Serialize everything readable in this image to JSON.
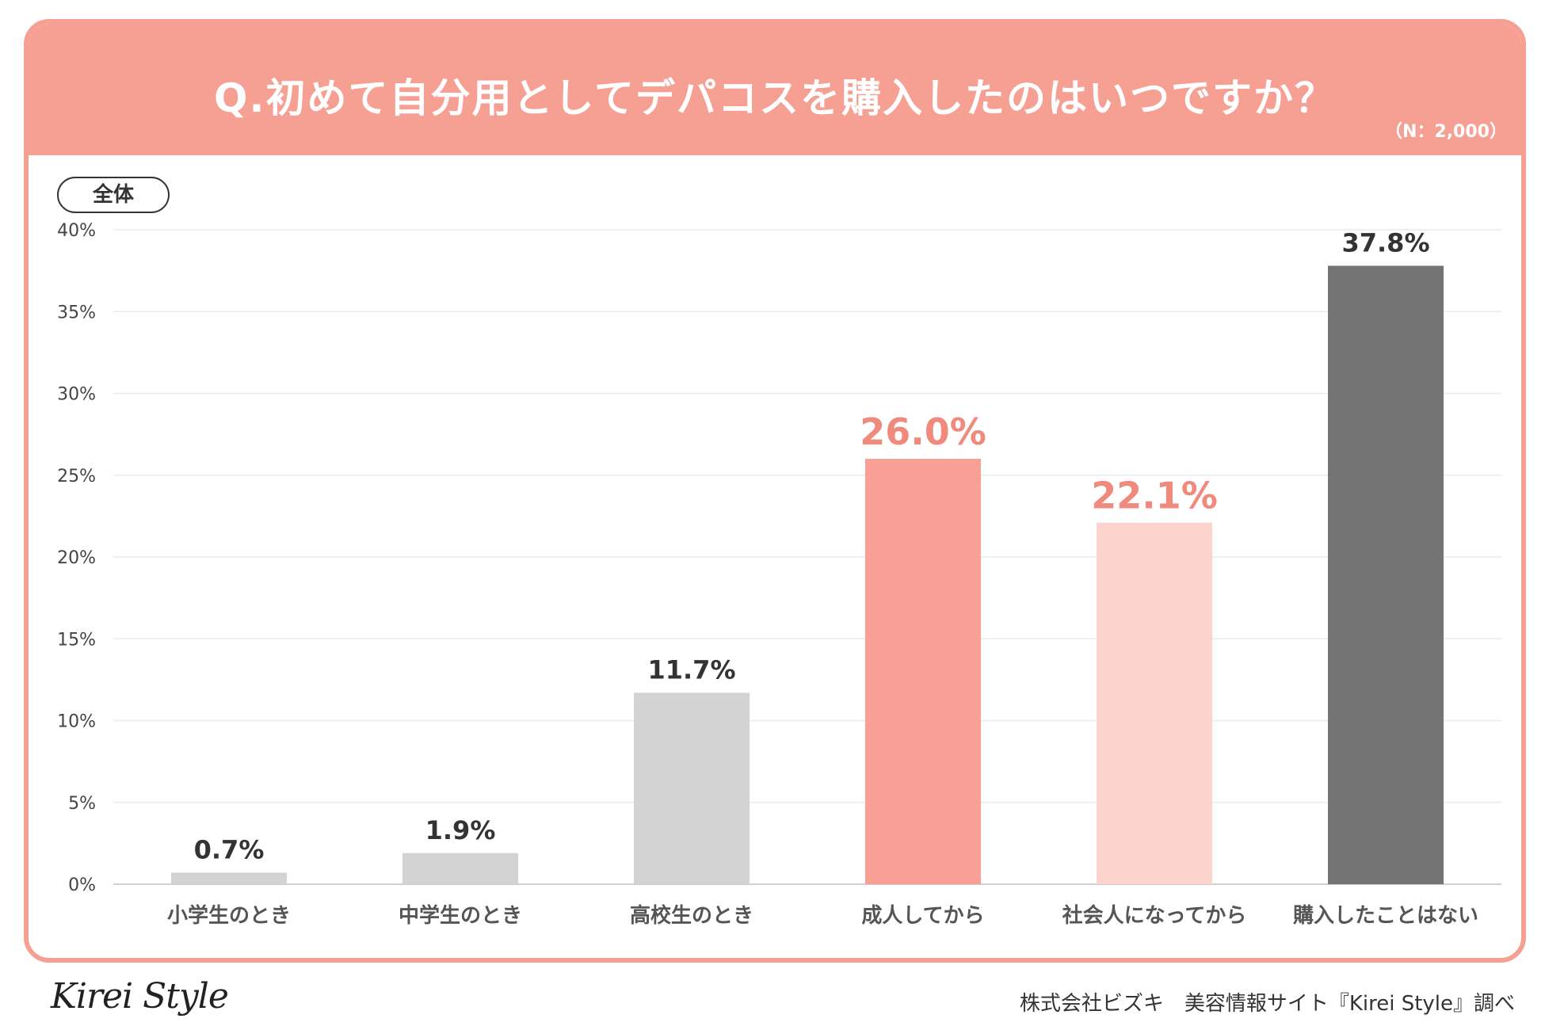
{
  "header": {
    "title": "Q.初めて自分用としてデパコスを購入したのはいつですか？",
    "sample": "（N：2,000）"
  },
  "segment_label": "全体",
  "colors": {
    "brand": "#f5a093",
    "bar_gray": "#d2d2d2",
    "bar_salmon": "#f8a095",
    "bar_pink": "#fdd3cd",
    "bar_dark": "#747474",
    "label_dark": "#333333",
    "label_accent": "#ef8a7c"
  },
  "chart_data": {
    "type": "bar",
    "title": "Q.初めて自分用としてデパコスを購入したのはいつですか？",
    "categories": [
      "小学生のとき",
      "中学生のとき",
      "高校生のとき",
      "成人してから",
      "社会人になってから",
      "購入したことはない"
    ],
    "values": [
      0.7,
      1.9,
      11.7,
      26.0,
      22.1,
      37.8
    ],
    "value_labels": [
      "0.7%",
      "1.9%",
      "11.7%",
      "26.0%",
      "22.1%",
      "37.8%"
    ],
    "bar_colors": [
      "#d2d2d2",
      "#d2d2d2",
      "#d2d2d2",
      "#f8a095",
      "#fdd3cd",
      "#747474"
    ],
    "label_styles": [
      "normal",
      "normal",
      "normal",
      "accent",
      "accent",
      "normal"
    ],
    "yticks": [
      0,
      5,
      10,
      15,
      20,
      25,
      30,
      35,
      40
    ],
    "ytick_labels": [
      "0%",
      "5%",
      "10%",
      "15%",
      "20%",
      "25%",
      "30%",
      "35%",
      "40%"
    ],
    "ylim": [
      0,
      40
    ],
    "xlabel": "",
    "ylabel": "",
    "grid": true
  },
  "footer": {
    "logo": "Kirei Style",
    "credit": "株式会社ビズキ　美容情報サイト『Kirei Style』調べ"
  }
}
